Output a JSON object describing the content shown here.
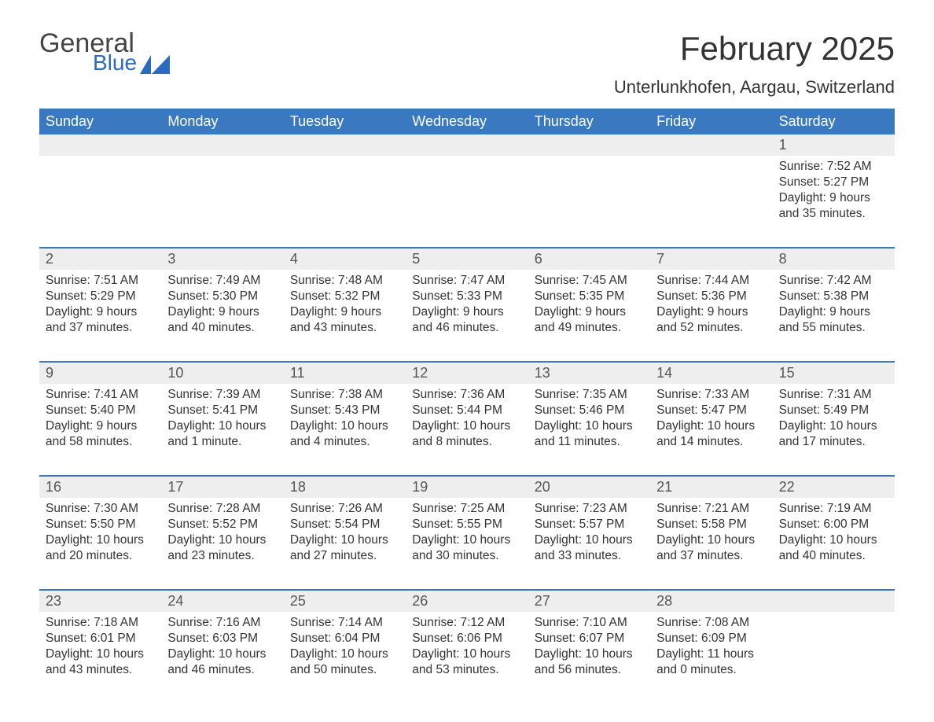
{
  "logo": {
    "line1": "General",
    "line2": "Blue"
  },
  "title": "February 2025",
  "subtitle": "Unterlunkhofen, Aargau, Switzerland",
  "colors": {
    "header_bg": "#3a78c0",
    "header_fg": "#ffffff",
    "daynum_bg": "#eeeeee",
    "week_border": "#3a78c0",
    "text": "#333333",
    "logo_gray": "#444444",
    "logo_blue": "#2a6bbf",
    "background": "#ffffff"
  },
  "typography": {
    "title_fontsize": 42,
    "subtitle_fontsize": 22,
    "weekday_fontsize": 18,
    "daynum_fontsize": 18,
    "body_fontsize": 15.5,
    "logo_general_fontsize": 34,
    "logo_blue_fontsize": 28
  },
  "layout": {
    "columns": 7,
    "week_rows": 5
  },
  "weekdays": [
    "Sunday",
    "Monday",
    "Tuesday",
    "Wednesday",
    "Thursday",
    "Friday",
    "Saturday"
  ],
  "weeks": [
    {
      "days": [
        {
          "num": "",
          "sunrise": "",
          "sunset": "",
          "daylight1": "",
          "daylight2": ""
        },
        {
          "num": "",
          "sunrise": "",
          "sunset": "",
          "daylight1": "",
          "daylight2": ""
        },
        {
          "num": "",
          "sunrise": "",
          "sunset": "",
          "daylight1": "",
          "daylight2": ""
        },
        {
          "num": "",
          "sunrise": "",
          "sunset": "",
          "daylight1": "",
          "daylight2": ""
        },
        {
          "num": "",
          "sunrise": "",
          "sunset": "",
          "daylight1": "",
          "daylight2": ""
        },
        {
          "num": "",
          "sunrise": "",
          "sunset": "",
          "daylight1": "",
          "daylight2": ""
        },
        {
          "num": "1",
          "sunrise": "Sunrise: 7:52 AM",
          "sunset": "Sunset: 5:27 PM",
          "daylight1": "Daylight: 9 hours",
          "daylight2": "and 35 minutes."
        }
      ]
    },
    {
      "days": [
        {
          "num": "2",
          "sunrise": "Sunrise: 7:51 AM",
          "sunset": "Sunset: 5:29 PM",
          "daylight1": "Daylight: 9 hours",
          "daylight2": "and 37 minutes."
        },
        {
          "num": "3",
          "sunrise": "Sunrise: 7:49 AM",
          "sunset": "Sunset: 5:30 PM",
          "daylight1": "Daylight: 9 hours",
          "daylight2": "and 40 minutes."
        },
        {
          "num": "4",
          "sunrise": "Sunrise: 7:48 AM",
          "sunset": "Sunset: 5:32 PM",
          "daylight1": "Daylight: 9 hours",
          "daylight2": "and 43 minutes."
        },
        {
          "num": "5",
          "sunrise": "Sunrise: 7:47 AM",
          "sunset": "Sunset: 5:33 PM",
          "daylight1": "Daylight: 9 hours",
          "daylight2": "and 46 minutes."
        },
        {
          "num": "6",
          "sunrise": "Sunrise: 7:45 AM",
          "sunset": "Sunset: 5:35 PM",
          "daylight1": "Daylight: 9 hours",
          "daylight2": "and 49 minutes."
        },
        {
          "num": "7",
          "sunrise": "Sunrise: 7:44 AM",
          "sunset": "Sunset: 5:36 PM",
          "daylight1": "Daylight: 9 hours",
          "daylight2": "and 52 minutes."
        },
        {
          "num": "8",
          "sunrise": "Sunrise: 7:42 AM",
          "sunset": "Sunset: 5:38 PM",
          "daylight1": "Daylight: 9 hours",
          "daylight2": "and 55 minutes."
        }
      ]
    },
    {
      "days": [
        {
          "num": "9",
          "sunrise": "Sunrise: 7:41 AM",
          "sunset": "Sunset: 5:40 PM",
          "daylight1": "Daylight: 9 hours",
          "daylight2": "and 58 minutes."
        },
        {
          "num": "10",
          "sunrise": "Sunrise: 7:39 AM",
          "sunset": "Sunset: 5:41 PM",
          "daylight1": "Daylight: 10 hours",
          "daylight2": "and 1 minute."
        },
        {
          "num": "11",
          "sunrise": "Sunrise: 7:38 AM",
          "sunset": "Sunset: 5:43 PM",
          "daylight1": "Daylight: 10 hours",
          "daylight2": "and 4 minutes."
        },
        {
          "num": "12",
          "sunrise": "Sunrise: 7:36 AM",
          "sunset": "Sunset: 5:44 PM",
          "daylight1": "Daylight: 10 hours",
          "daylight2": "and 8 minutes."
        },
        {
          "num": "13",
          "sunrise": "Sunrise: 7:35 AM",
          "sunset": "Sunset: 5:46 PM",
          "daylight1": "Daylight: 10 hours",
          "daylight2": "and 11 minutes."
        },
        {
          "num": "14",
          "sunrise": "Sunrise: 7:33 AM",
          "sunset": "Sunset: 5:47 PM",
          "daylight1": "Daylight: 10 hours",
          "daylight2": "and 14 minutes."
        },
        {
          "num": "15",
          "sunrise": "Sunrise: 7:31 AM",
          "sunset": "Sunset: 5:49 PM",
          "daylight1": "Daylight: 10 hours",
          "daylight2": "and 17 minutes."
        }
      ]
    },
    {
      "days": [
        {
          "num": "16",
          "sunrise": "Sunrise: 7:30 AM",
          "sunset": "Sunset: 5:50 PM",
          "daylight1": "Daylight: 10 hours",
          "daylight2": "and 20 minutes."
        },
        {
          "num": "17",
          "sunrise": "Sunrise: 7:28 AM",
          "sunset": "Sunset: 5:52 PM",
          "daylight1": "Daylight: 10 hours",
          "daylight2": "and 23 minutes."
        },
        {
          "num": "18",
          "sunrise": "Sunrise: 7:26 AM",
          "sunset": "Sunset: 5:54 PM",
          "daylight1": "Daylight: 10 hours",
          "daylight2": "and 27 minutes."
        },
        {
          "num": "19",
          "sunrise": "Sunrise: 7:25 AM",
          "sunset": "Sunset: 5:55 PM",
          "daylight1": "Daylight: 10 hours",
          "daylight2": "and 30 minutes."
        },
        {
          "num": "20",
          "sunrise": "Sunrise: 7:23 AM",
          "sunset": "Sunset: 5:57 PM",
          "daylight1": "Daylight: 10 hours",
          "daylight2": "and 33 minutes."
        },
        {
          "num": "21",
          "sunrise": "Sunrise: 7:21 AM",
          "sunset": "Sunset: 5:58 PM",
          "daylight1": "Daylight: 10 hours",
          "daylight2": "and 37 minutes."
        },
        {
          "num": "22",
          "sunrise": "Sunrise: 7:19 AM",
          "sunset": "Sunset: 6:00 PM",
          "daylight1": "Daylight: 10 hours",
          "daylight2": "and 40 minutes."
        }
      ]
    },
    {
      "days": [
        {
          "num": "23",
          "sunrise": "Sunrise: 7:18 AM",
          "sunset": "Sunset: 6:01 PM",
          "daylight1": "Daylight: 10 hours",
          "daylight2": "and 43 minutes."
        },
        {
          "num": "24",
          "sunrise": "Sunrise: 7:16 AM",
          "sunset": "Sunset: 6:03 PM",
          "daylight1": "Daylight: 10 hours",
          "daylight2": "and 46 minutes."
        },
        {
          "num": "25",
          "sunrise": "Sunrise: 7:14 AM",
          "sunset": "Sunset: 6:04 PM",
          "daylight1": "Daylight: 10 hours",
          "daylight2": "and 50 minutes."
        },
        {
          "num": "26",
          "sunrise": "Sunrise: 7:12 AM",
          "sunset": "Sunset: 6:06 PM",
          "daylight1": "Daylight: 10 hours",
          "daylight2": "and 53 minutes."
        },
        {
          "num": "27",
          "sunrise": "Sunrise: 7:10 AM",
          "sunset": "Sunset: 6:07 PM",
          "daylight1": "Daylight: 10 hours",
          "daylight2": "and 56 minutes."
        },
        {
          "num": "28",
          "sunrise": "Sunrise: 7:08 AM",
          "sunset": "Sunset: 6:09 PM",
          "daylight1": "Daylight: 11 hours",
          "daylight2": "and 0 minutes."
        },
        {
          "num": "",
          "sunrise": "",
          "sunset": "",
          "daylight1": "",
          "daylight2": ""
        }
      ]
    }
  ]
}
